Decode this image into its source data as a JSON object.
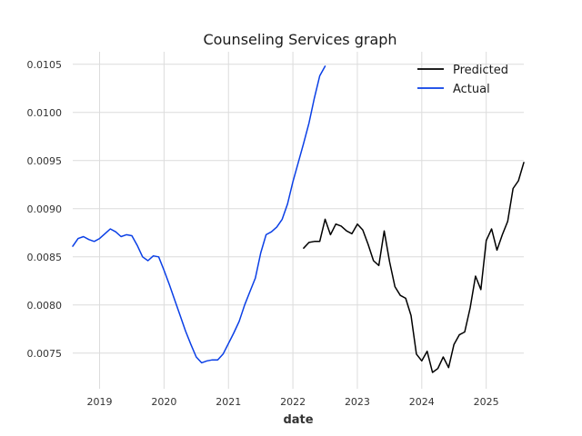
{
  "chart_data": {
    "type": "line",
    "title": "Counseling Services graph",
    "xlabel": "date",
    "ylabel": "",
    "x_ticks": [
      "2019",
      "2020",
      "2021",
      "2022",
      "2023",
      "2024",
      "2025"
    ],
    "y_ticks": [
      "0.0075",
      "0.0080",
      "0.0085",
      "0.0090",
      "0.0095",
      "0.0100",
      "0.0105"
    ],
    "xlim": [
      "2018-08-01",
      "2025-08-01"
    ],
    "ylim": [
      0.00713,
      0.01063
    ],
    "grid": true,
    "legend_position": "top-right",
    "series": [
      {
        "name": "Predicted",
        "color": "#000000",
        "points": [
          [
            "2022-03-01",
            0.00859
          ],
          [
            "2022-04-01",
            0.00865
          ],
          [
            "2022-05-01",
            0.00866
          ],
          [
            "2022-06-01",
            0.00866
          ],
          [
            "2022-07-01",
            0.00889
          ],
          [
            "2022-08-01",
            0.00873
          ],
          [
            "2022-09-01",
            0.00884
          ],
          [
            "2022-10-01",
            0.00882
          ],
          [
            "2022-11-01",
            0.00877
          ],
          [
            "2022-12-01",
            0.00874
          ],
          [
            "2023-01-01",
            0.00884
          ],
          [
            "2023-02-01",
            0.00878
          ],
          [
            "2023-03-01",
            0.00863
          ],
          [
            "2023-04-01",
            0.00846
          ],
          [
            "2023-05-01",
            0.00841
          ],
          [
            "2023-06-01",
            0.00877
          ],
          [
            "2023-07-01",
            0.00845
          ],
          [
            "2023-08-01",
            0.00819
          ],
          [
            "2023-09-01",
            0.0081
          ],
          [
            "2023-10-01",
            0.00807
          ],
          [
            "2023-11-01",
            0.00789
          ],
          [
            "2023-12-01",
            0.00749
          ],
          [
            "2024-01-01",
            0.00742
          ],
          [
            "2024-02-01",
            0.00752
          ],
          [
            "2024-03-01",
            0.0073
          ],
          [
            "2024-04-01",
            0.00734
          ],
          [
            "2024-05-01",
            0.00746
          ],
          [
            "2024-06-01",
            0.00735
          ],
          [
            "2024-07-01",
            0.00759
          ],
          [
            "2024-08-01",
            0.00769
          ],
          [
            "2024-09-01",
            0.00772
          ],
          [
            "2024-10-01",
            0.00797
          ],
          [
            "2024-11-01",
            0.0083
          ],
          [
            "2024-12-01",
            0.00816
          ],
          [
            "2025-01-01",
            0.00867
          ],
          [
            "2025-02-01",
            0.00879
          ],
          [
            "2025-03-01",
            0.00857
          ],
          [
            "2025-04-01",
            0.00873
          ],
          [
            "2025-05-01",
            0.00887
          ],
          [
            "2025-06-01",
            0.00921
          ],
          [
            "2025-07-01",
            0.00929
          ],
          [
            "2025-08-01",
            0.00948
          ]
        ]
      },
      {
        "name": "Actual",
        "color": "#0a3fe6",
        "points": [
          [
            "2018-08-01",
            0.00861
          ],
          [
            "2018-09-01",
            0.00869
          ],
          [
            "2018-10-01",
            0.00871
          ],
          [
            "2018-11-01",
            0.00868
          ],
          [
            "2018-12-01",
            0.00866
          ],
          [
            "2019-01-01",
            0.00869
          ],
          [
            "2019-02-01",
            0.00874
          ],
          [
            "2019-03-01",
            0.00879
          ],
          [
            "2019-04-01",
            0.00876
          ],
          [
            "2019-05-01",
            0.00871
          ],
          [
            "2019-06-01",
            0.00873
          ],
          [
            "2019-07-01",
            0.00872
          ],
          [
            "2019-08-01",
            0.00862
          ],
          [
            "2019-09-01",
            0.0085
          ],
          [
            "2019-10-01",
            0.00846
          ],
          [
            "2019-11-01",
            0.00851
          ],
          [
            "2019-12-01",
            0.0085
          ],
          [
            "2020-01-01",
            0.00836
          ],
          [
            "2020-02-01",
            0.00821
          ],
          [
            "2020-03-01",
            0.00805
          ],
          [
            "2020-04-01",
            0.00789
          ],
          [
            "2020-05-01",
            0.00773
          ],
          [
            "2020-06-01",
            0.00759
          ],
          [
            "2020-07-01",
            0.00746
          ],
          [
            "2020-08-01",
            0.0074
          ],
          [
            "2020-09-01",
            0.00742
          ],
          [
            "2020-10-01",
            0.00743
          ],
          [
            "2020-11-01",
            0.00743
          ],
          [
            "2020-12-01",
            0.00749
          ],
          [
            "2021-01-01",
            0.0076
          ],
          [
            "2021-02-01",
            0.00771
          ],
          [
            "2021-03-01",
            0.00783
          ],
          [
            "2021-04-01",
            0.008
          ],
          [
            "2021-05-01",
            0.00814
          ],
          [
            "2021-06-01",
            0.00828
          ],
          [
            "2021-07-01",
            0.00854
          ],
          [
            "2021-08-01",
            0.00873
          ],
          [
            "2021-09-01",
            0.00876
          ],
          [
            "2021-10-01",
            0.00881
          ],
          [
            "2021-11-01",
            0.00889
          ],
          [
            "2021-12-01",
            0.00905
          ],
          [
            "2022-01-01",
            0.00928
          ],
          [
            "2022-02-01",
            0.00948
          ],
          [
            "2022-03-01",
            0.00968
          ],
          [
            "2022-04-01",
            0.00989
          ],
          [
            "2022-05-01",
            0.01015
          ],
          [
            "2022-06-01",
            0.01038
          ],
          [
            "2022-07-01",
            0.01048
          ]
        ]
      }
    ]
  }
}
